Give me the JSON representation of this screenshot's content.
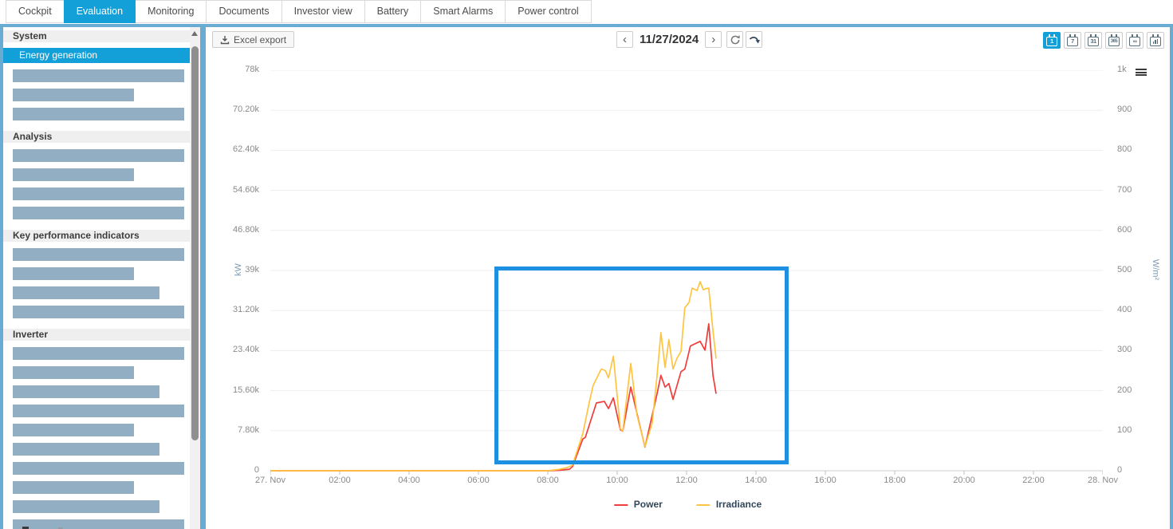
{
  "tabs": {
    "items": [
      {
        "label": "Cockpit",
        "active": false
      },
      {
        "label": "Evaluation",
        "active": true
      },
      {
        "label": "Monitoring",
        "active": false
      },
      {
        "label": "Documents",
        "active": false
      },
      {
        "label": "Investor view",
        "active": false
      },
      {
        "label": "Battery",
        "active": false
      },
      {
        "label": "Smart Alarms",
        "active": false
      },
      {
        "label": "Power control",
        "active": false
      }
    ]
  },
  "sidebar": {
    "sections": [
      {
        "title": "System",
        "items": [
          {
            "kind": "selected",
            "label": "Energy generation"
          },
          {
            "kind": "redacted",
            "width": "long"
          },
          {
            "kind": "redacted",
            "width": "short"
          },
          {
            "kind": "redacted",
            "width": "long"
          }
        ]
      },
      {
        "title": "Analysis",
        "items": [
          {
            "kind": "redacted",
            "width": "long"
          },
          {
            "kind": "redacted",
            "width": "short"
          },
          {
            "kind": "redacted",
            "width": "long"
          },
          {
            "kind": "redacted",
            "width": "long"
          }
        ]
      },
      {
        "title": "Key performance indicators",
        "items": [
          {
            "kind": "redacted",
            "width": "long"
          },
          {
            "kind": "redacted",
            "width": "short"
          },
          {
            "kind": "redacted",
            "width": "medium"
          },
          {
            "kind": "redacted",
            "width": "long"
          }
        ]
      },
      {
        "title": "Inverter",
        "items": [
          {
            "kind": "redacted",
            "width": "long"
          },
          {
            "kind": "redacted",
            "width": "short"
          },
          {
            "kind": "redacted",
            "width": "medium"
          },
          {
            "kind": "redacted",
            "width": "long"
          },
          {
            "kind": "redacted",
            "width": "short"
          },
          {
            "kind": "redacted",
            "width": "medium"
          },
          {
            "kind": "redacted",
            "width": "long"
          },
          {
            "kind": "redacted",
            "width": "short"
          },
          {
            "kind": "redacted",
            "width": "medium"
          },
          {
            "kind": "redacted",
            "width": "long"
          }
        ]
      }
    ]
  },
  "toolbar": {
    "excel_export_label": "Excel export",
    "prev_label": "‹",
    "next_label": "›",
    "date_value": "11/27/2024"
  },
  "view_buttons": [
    {
      "glyph": "1",
      "icon": "calendar-day-icon",
      "active": true
    },
    {
      "glyph": "7",
      "icon": "calendar-week-icon",
      "active": false
    },
    {
      "glyph": "31",
      "icon": "calendar-month-icon",
      "active": false
    },
    {
      "glyph": "365",
      "icon": "calendar-year-icon",
      "active": false
    },
    {
      "glyph": "∞",
      "icon": "calendar-lifetime-icon",
      "active": false
    },
    {
      "glyph": "bars",
      "icon": "calendar-chart-icon",
      "active": false
    }
  ],
  "chart_data": {
    "type": "line",
    "title": "",
    "grid": "horizontal",
    "legend_position": "bottom",
    "x_axis": {
      "labels": [
        "27. Nov",
        "02:00",
        "04:00",
        "06:00",
        "08:00",
        "10:00",
        "12:00",
        "14:00",
        "16:00",
        "18:00",
        "20:00",
        "22:00",
        "28. Nov"
      ],
      "hours_range": [
        0,
        24
      ]
    },
    "y_axis_left": {
      "unit": "kW",
      "max": 78000,
      "tick_labels": [
        "78k",
        "70.20k",
        "62.40k",
        "54.60k",
        "46.80k",
        "39k",
        "31.20k",
        "23.40k",
        "15.60k",
        "7.80k",
        "0"
      ]
    },
    "y_axis_right": {
      "unit": "W/m²",
      "max": 1000,
      "tick_labels": [
        "1k",
        "900",
        "800",
        "700",
        "600",
        "500",
        "400",
        "300",
        "200",
        "100",
        "0"
      ]
    },
    "series": [
      {
        "name": "Power",
        "unit": "kW",
        "axis": "left",
        "color": "#f23c3c",
        "points": [
          [
            0,
            0
          ],
          [
            8.0,
            0
          ],
          [
            8.3,
            80
          ],
          [
            8.62,
            300
          ],
          [
            8.71,
            800
          ],
          [
            9.01,
            6200
          ],
          [
            9.08,
            6500
          ],
          [
            9.4,
            13200
          ],
          [
            9.63,
            13500
          ],
          [
            9.75,
            12100
          ],
          [
            9.89,
            14200
          ],
          [
            10.09,
            8000
          ],
          [
            10.16,
            7700
          ],
          [
            10.39,
            16300
          ],
          [
            10.62,
            9700
          ],
          [
            10.8,
            4600
          ],
          [
            11.15,
            15000
          ],
          [
            11.26,
            18600
          ],
          [
            11.38,
            16300
          ],
          [
            11.49,
            17000
          ],
          [
            11.61,
            13900
          ],
          [
            11.72,
            16500
          ],
          [
            11.84,
            19300
          ],
          [
            11.95,
            19800
          ],
          [
            12.11,
            24300
          ],
          [
            12.39,
            25200
          ],
          [
            12.53,
            23500
          ],
          [
            12.64,
            28600
          ],
          [
            12.76,
            18600
          ],
          [
            12.85,
            15000
          ]
        ]
      },
      {
        "name": "Irradiance",
        "unit": "W/m²",
        "axis": "right",
        "color": "#ffc440",
        "points": [
          [
            0,
            0
          ],
          [
            8.0,
            0
          ],
          [
            8.3,
            3
          ],
          [
            8.56,
            8
          ],
          [
            8.71,
            14
          ],
          [
            9.01,
            93
          ],
          [
            9.2,
            173
          ],
          [
            9.31,
            214
          ],
          [
            9.54,
            254
          ],
          [
            9.66,
            250
          ],
          [
            9.75,
            232
          ],
          [
            9.89,
            286
          ],
          [
            10.09,
            105
          ],
          [
            10.16,
            99
          ],
          [
            10.39,
            268
          ],
          [
            10.57,
            139
          ],
          [
            10.8,
            60
          ],
          [
            11.01,
            119
          ],
          [
            11.15,
            238
          ],
          [
            11.26,
            345
          ],
          [
            11.38,
            258
          ],
          [
            11.49,
            327
          ],
          [
            11.61,
            254
          ],
          [
            11.72,
            280
          ],
          [
            11.84,
            298
          ],
          [
            11.95,
            407
          ],
          [
            12.07,
            420
          ],
          [
            12.16,
            456
          ],
          [
            12.3,
            450
          ],
          [
            12.39,
            472
          ],
          [
            12.48,
            452
          ],
          [
            12.57,
            455
          ],
          [
            12.64,
            456
          ],
          [
            12.76,
            350
          ],
          [
            12.85,
            280
          ]
        ]
      }
    ]
  },
  "annotation": {
    "shape": "rectangle",
    "color": "#1e90e2"
  },
  "colors": {
    "accent": "#13a0d9",
    "frame": "#6aabd2",
    "redacted_bar": "#91aec2",
    "power": "#f23c3c",
    "irradiance": "#ffc440"
  }
}
